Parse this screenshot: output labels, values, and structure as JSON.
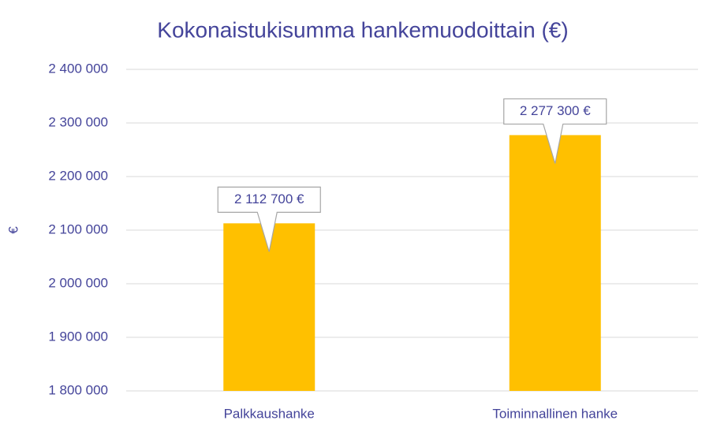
{
  "chart_data": {
    "type": "bar",
    "title": "Kokonaistukisumma hankemuodoittain (€)",
    "y_label": "€",
    "categories": [
      "Palkkaushanke",
      "Toiminnallinen hanke"
    ],
    "values": [
      2112700,
      2277300
    ],
    "value_labels": [
      "2 112 700 €",
      "2 277 300 €"
    ],
    "color": "#ffc000",
    "ylim": [
      1800000,
      2400000
    ],
    "yticks": [
      {
        "value": 1800000,
        "label": "1 800 000"
      },
      {
        "value": 1900000,
        "label": "1 900 000"
      },
      {
        "value": 2000000,
        "label": "2 000 000"
      },
      {
        "value": 2100000,
        "label": "2 100 000"
      },
      {
        "value": 2200000,
        "label": "2 200 000"
      },
      {
        "value": 2300000,
        "label": "2 300 000"
      },
      {
        "value": 2400000,
        "label": "2 400 000"
      }
    ],
    "grid": true
  }
}
